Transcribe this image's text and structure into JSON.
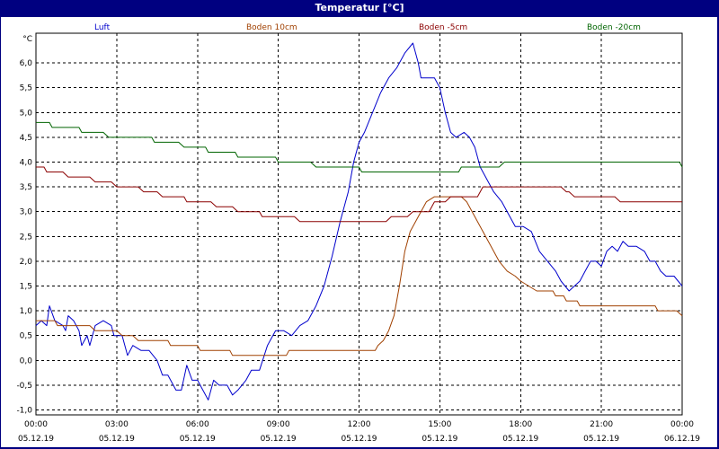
{
  "window": {
    "title": "Temperatur [°C]"
  },
  "chart_data": {
    "type": "line",
    "title": "Temperatur [°C]",
    "ylabel": "°C",
    "xlabel": "",
    "ylim": [
      -1.1,
      6.6
    ],
    "y_ticks": [
      "-1,0",
      "-0,5",
      "0,0",
      "0,5",
      "1,0",
      "1,5",
      "2,0",
      "2,5",
      "3,0",
      "3,5",
      "4,0",
      "4,5",
      "5,0",
      "5,5",
      "6,0"
    ],
    "x_ticks": [
      {
        "time": "00:00",
        "date": "05.12.19"
      },
      {
        "time": "03:00",
        "date": "05.12.19"
      },
      {
        "time": "06:00",
        "date": "05.12.19"
      },
      {
        "time": "09:00",
        "date": "05.12.19"
      },
      {
        "time": "12:00",
        "date": "05.12.19"
      },
      {
        "time": "15:00",
        "date": "05.12.19"
      },
      {
        "time": "18:00",
        "date": "05.12.19"
      },
      {
        "time": "21:00",
        "date": "05.12.19"
      },
      {
        "time": "00:00",
        "date": "06.12.19"
      }
    ],
    "grid": true,
    "legend_position": "top",
    "series": [
      {
        "name": "Luft",
        "color": "#0000cc",
        "points": [
          [
            0,
            0.7
          ],
          [
            0.2,
            0.8
          ],
          [
            0.4,
            0.7
          ],
          [
            0.5,
            1.1
          ],
          [
            0.7,
            0.8
          ],
          [
            1.0,
            0.7
          ],
          [
            1.1,
            0.6
          ],
          [
            1.2,
            0.9
          ],
          [
            1.4,
            0.8
          ],
          [
            1.6,
            0.6
          ],
          [
            1.7,
            0.3
          ],
          [
            1.9,
            0.5
          ],
          [
            2.0,
            0.3
          ],
          [
            2.2,
            0.7
          ],
          [
            2.5,
            0.8
          ],
          [
            2.8,
            0.7
          ],
          [
            2.9,
            0.5
          ],
          [
            3.2,
            0.5
          ],
          [
            3.4,
            0.1
          ],
          [
            3.6,
            0.3
          ],
          [
            3.9,
            0.2
          ],
          [
            4.2,
            0.2
          ],
          [
            4.5,
            0.0
          ],
          [
            4.7,
            -0.3
          ],
          [
            4.9,
            -0.3
          ],
          [
            5.2,
            -0.6
          ],
          [
            5.4,
            -0.6
          ],
          [
            5.6,
            -0.1
          ],
          [
            5.8,
            -0.4
          ],
          [
            6.0,
            -0.4
          ],
          [
            6.2,
            -0.6
          ],
          [
            6.4,
            -0.8
          ],
          [
            6.6,
            -0.4
          ],
          [
            6.8,
            -0.5
          ],
          [
            7.1,
            -0.5
          ],
          [
            7.3,
            -0.7
          ],
          [
            7.5,
            -0.6
          ],
          [
            7.8,
            -0.4
          ],
          [
            8.0,
            -0.2
          ],
          [
            8.3,
            -0.2
          ],
          [
            8.6,
            0.3
          ],
          [
            8.9,
            0.6
          ],
          [
            9.2,
            0.6
          ],
          [
            9.5,
            0.5
          ],
          [
            9.8,
            0.7
          ],
          [
            10.1,
            0.8
          ],
          [
            10.4,
            1.1
          ],
          [
            10.7,
            1.5
          ],
          [
            11.0,
            2.1
          ],
          [
            11.3,
            2.8
          ],
          [
            11.6,
            3.4
          ],
          [
            11.8,
            4.0
          ],
          [
            12.0,
            4.4
          ],
          [
            12.2,
            4.6
          ],
          [
            12.5,
            5.0
          ],
          [
            12.8,
            5.4
          ],
          [
            13.1,
            5.7
          ],
          [
            13.4,
            5.9
          ],
          [
            13.7,
            6.2
          ],
          [
            14.0,
            6.4
          ],
          [
            14.2,
            6.0
          ],
          [
            14.3,
            5.7
          ],
          [
            14.6,
            5.7
          ],
          [
            14.8,
            5.7
          ],
          [
            15.0,
            5.5
          ],
          [
            15.2,
            5.0
          ],
          [
            15.4,
            4.6
          ],
          [
            15.6,
            4.5
          ],
          [
            15.9,
            4.6
          ],
          [
            16.1,
            4.5
          ],
          [
            16.3,
            4.3
          ],
          [
            16.5,
            3.9
          ],
          [
            16.8,
            3.6
          ],
          [
            17.0,
            3.4
          ],
          [
            17.3,
            3.2
          ],
          [
            17.5,
            3.0
          ],
          [
            17.8,
            2.7
          ],
          [
            18.1,
            2.7
          ],
          [
            18.4,
            2.6
          ],
          [
            18.7,
            2.2
          ],
          [
            19.0,
            2.0
          ],
          [
            19.3,
            1.8
          ],
          [
            19.5,
            1.6
          ],
          [
            19.8,
            1.4
          ],
          [
            20.0,
            1.5
          ],
          [
            20.2,
            1.6
          ],
          [
            20.4,
            1.8
          ],
          [
            20.6,
            2.0
          ],
          [
            20.8,
            2.0
          ],
          [
            21.0,
            1.9
          ],
          [
            21.2,
            2.2
          ],
          [
            21.4,
            2.3
          ],
          [
            21.6,
            2.2
          ],
          [
            21.8,
            2.4
          ],
          [
            22.0,
            2.3
          ],
          [
            22.3,
            2.3
          ],
          [
            22.6,
            2.2
          ],
          [
            22.8,
            2.0
          ],
          [
            23.0,
            2.0
          ],
          [
            23.2,
            1.8
          ],
          [
            23.4,
            1.7
          ],
          [
            23.7,
            1.7
          ],
          [
            24.0,
            1.5
          ]
        ]
      },
      {
        "name": "Boden 10cm",
        "color": "#a04000",
        "points": [
          [
            0,
            0.8
          ],
          [
            0.7,
            0.8
          ],
          [
            0.8,
            0.7
          ],
          [
            2.0,
            0.7
          ],
          [
            2.2,
            0.6
          ],
          [
            3.0,
            0.6
          ],
          [
            3.2,
            0.5
          ],
          [
            3.6,
            0.5
          ],
          [
            3.8,
            0.4
          ],
          [
            4.9,
            0.4
          ],
          [
            5.0,
            0.3
          ],
          [
            6.0,
            0.3
          ],
          [
            6.1,
            0.2
          ],
          [
            7.2,
            0.2
          ],
          [
            7.3,
            0.1
          ],
          [
            9.3,
            0.1
          ],
          [
            9.4,
            0.2
          ],
          [
            12.6,
            0.2
          ],
          [
            12.7,
            0.3
          ],
          [
            12.9,
            0.4
          ],
          [
            13.1,
            0.6
          ],
          [
            13.3,
            0.9
          ],
          [
            13.5,
            1.5
          ],
          [
            13.7,
            2.2
          ],
          [
            13.9,
            2.6
          ],
          [
            14.2,
            2.9
          ],
          [
            14.5,
            3.2
          ],
          [
            14.8,
            3.3
          ],
          [
            15.2,
            3.3
          ],
          [
            15.8,
            3.3
          ],
          [
            16.0,
            3.2
          ],
          [
            16.3,
            2.9
          ],
          [
            16.6,
            2.6
          ],
          [
            16.9,
            2.3
          ],
          [
            17.2,
            2.0
          ],
          [
            17.5,
            1.8
          ],
          [
            17.8,
            1.7
          ],
          [
            18.0,
            1.6
          ],
          [
            18.3,
            1.5
          ],
          [
            18.6,
            1.4
          ],
          [
            19.2,
            1.4
          ],
          [
            19.3,
            1.3
          ],
          [
            19.6,
            1.3
          ],
          [
            19.7,
            1.2
          ],
          [
            20.1,
            1.2
          ],
          [
            20.2,
            1.1
          ],
          [
            23.0,
            1.1
          ],
          [
            23.1,
            1.0
          ],
          [
            23.8,
            1.0
          ],
          [
            24.0,
            0.9
          ]
        ]
      },
      {
        "name": "Boden -5cm",
        "color": "#8b0000",
        "points": [
          [
            0,
            3.9
          ],
          [
            0.3,
            3.9
          ],
          [
            0.4,
            3.8
          ],
          [
            1.0,
            3.8
          ],
          [
            1.2,
            3.7
          ],
          [
            2.0,
            3.7
          ],
          [
            2.2,
            3.6
          ],
          [
            2.8,
            3.6
          ],
          [
            3.0,
            3.5
          ],
          [
            3.8,
            3.5
          ],
          [
            4.0,
            3.4
          ],
          [
            4.5,
            3.4
          ],
          [
            4.7,
            3.3
          ],
          [
            5.5,
            3.3
          ],
          [
            5.6,
            3.2
          ],
          [
            6.5,
            3.2
          ],
          [
            6.7,
            3.1
          ],
          [
            7.3,
            3.1
          ],
          [
            7.5,
            3.0
          ],
          [
            8.3,
            3.0
          ],
          [
            8.4,
            2.9
          ],
          [
            9.6,
            2.9
          ],
          [
            9.8,
            2.8
          ],
          [
            13.0,
            2.8
          ],
          [
            13.2,
            2.9
          ],
          [
            13.8,
            2.9
          ],
          [
            14.0,
            3.0
          ],
          [
            14.6,
            3.0
          ],
          [
            14.8,
            3.2
          ],
          [
            15.2,
            3.2
          ],
          [
            15.4,
            3.3
          ],
          [
            16.4,
            3.3
          ],
          [
            16.6,
            3.5
          ],
          [
            19.5,
            3.5
          ],
          [
            19.7,
            3.4
          ],
          [
            19.8,
            3.4
          ],
          [
            20.0,
            3.3
          ],
          [
            21.5,
            3.3
          ],
          [
            21.7,
            3.2
          ],
          [
            24.0,
            3.2
          ]
        ]
      },
      {
        "name": "Boden -20cm",
        "color": "#006400",
        "points": [
          [
            0,
            4.8
          ],
          [
            0.5,
            4.8
          ],
          [
            0.6,
            4.7
          ],
          [
            1.6,
            4.7
          ],
          [
            1.7,
            4.6
          ],
          [
            2.5,
            4.6
          ],
          [
            2.7,
            4.5
          ],
          [
            4.3,
            4.5
          ],
          [
            4.4,
            4.4
          ],
          [
            5.3,
            4.4
          ],
          [
            5.5,
            4.3
          ],
          [
            6.3,
            4.3
          ],
          [
            6.4,
            4.2
          ],
          [
            7.4,
            4.2
          ],
          [
            7.5,
            4.1
          ],
          [
            8.9,
            4.1
          ],
          [
            9.0,
            4.0
          ],
          [
            10.2,
            4.0
          ],
          [
            10.4,
            3.9
          ],
          [
            12.0,
            3.9
          ],
          [
            12.1,
            3.8
          ],
          [
            15.7,
            3.8
          ],
          [
            15.8,
            3.9
          ],
          [
            17.2,
            3.9
          ],
          [
            17.4,
            4.0
          ],
          [
            23.9,
            4.0
          ],
          [
            24.0,
            3.9
          ]
        ]
      }
    ]
  }
}
